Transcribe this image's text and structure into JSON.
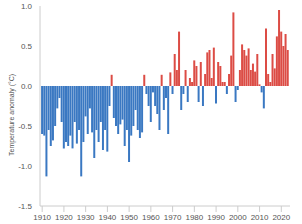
{
  "chart_data": {
    "type": "bar",
    "y_label": "Temperature anomaly (°C)",
    "x": [
      1910,
      1911,
      1912,
      1913,
      1914,
      1915,
      1916,
      1917,
      1918,
      1919,
      1920,
      1921,
      1922,
      1923,
      1924,
      1925,
      1926,
      1927,
      1928,
      1929,
      1930,
      1931,
      1932,
      1933,
      1934,
      1935,
      1936,
      1937,
      1938,
      1939,
      1940,
      1941,
      1942,
      1943,
      1944,
      1945,
      1946,
      1947,
      1948,
      1949,
      1950,
      1951,
      1952,
      1953,
      1954,
      1955,
      1956,
      1957,
      1958,
      1959,
      1960,
      1961,
      1962,
      1963,
      1964,
      1965,
      1966,
      1967,
      1968,
      1969,
      1970,
      1971,
      1972,
      1973,
      1974,
      1975,
      1976,
      1977,
      1978,
      1979,
      1980,
      1981,
      1982,
      1983,
      1984,
      1985,
      1986,
      1987,
      1988,
      1989,
      1990,
      1991,
      1992,
      1993,
      1994,
      1995,
      1996,
      1997,
      1998,
      1999,
      2000,
      2001,
      2002,
      2003,
      2004,
      2005,
      2006,
      2007,
      2008,
      2009,
      2010,
      2011,
      2012,
      2013,
      2014,
      2015,
      2016,
      2017,
      2018,
      2019,
      2020,
      2021,
      2022,
      2023
    ],
    "values": [
      -0.6,
      -0.62,
      -1.13,
      -0.55,
      -0.75,
      -0.68,
      -0.5,
      -0.28,
      -0.15,
      -0.45,
      -0.78,
      -0.7,
      -0.75,
      -0.62,
      -0.78,
      -0.45,
      -0.72,
      -0.55,
      -1.13,
      -0.7,
      -0.38,
      -0.6,
      -0.28,
      -0.58,
      -0.9,
      -0.55,
      -0.7,
      -0.45,
      -0.8,
      -0.55,
      -0.82,
      -0.25,
      0.14,
      -0.4,
      -0.5,
      -0.6,
      -0.48,
      -0.42,
      -0.75,
      -0.55,
      -0.95,
      -0.62,
      -0.5,
      -0.3,
      -0.55,
      -0.65,
      -0.58,
      0.14,
      -0.1,
      -0.25,
      -0.45,
      -0.08,
      -0.25,
      -0.35,
      -0.55,
      0.14,
      -0.3,
      -0.15,
      -0.6,
      0.17,
      -0.1,
      0.4,
      0.2,
      0.68,
      -0.3,
      -0.1,
      0.2,
      -0.2,
      0.1,
      0.05,
      0.32,
      0.25,
      -0.2,
      0.3,
      -0.25,
      0.15,
      0.42,
      0.45,
      0.1,
      0.48,
      -0.22,
      0.3,
      0.25,
      0.05,
      0.05,
      -0.1,
      0.15,
      0.38,
      0.92,
      -0.2,
      -0.05,
      0.2,
      0.52,
      0.45,
      0.38,
      0.47,
      0.2,
      0.28,
      0.18,
      0.4,
      0.02,
      -0.08,
      -0.28,
      0.72,
      0.15,
      0.05,
      0.4,
      0.22,
      0.62,
      0.95,
      0.68,
      0.5,
      0.65,
      0.45
    ],
    "colors": [
      "#3a78c2",
      "#3a78c2",
      "#3a78c2",
      "#3a78c2",
      "#3a78c2",
      "#3a78c2",
      "#3a78c2",
      "#3a78c2",
      "#3a78c2",
      "#3a78c2",
      "#3a78c2",
      "#3a78c2",
      "#3a78c2",
      "#3a78c2",
      "#3a78c2",
      "#3a78c2",
      "#3a78c2",
      "#3a78c2",
      "#3a78c2",
      "#3a78c2",
      "#3a78c2",
      "#3a78c2",
      "#3a78c2",
      "#3a78c2",
      "#3a78c2",
      "#3a78c2",
      "#3a78c2",
      "#3a78c2",
      "#3a78c2",
      "#3a78c2",
      "#3a78c2",
      "#3a78c2",
      "#dc4c45",
      "#3a78c2",
      "#3a78c2",
      "#3a78c2",
      "#3a78c2",
      "#3a78c2",
      "#3a78c2",
      "#3a78c2",
      "#3a78c2",
      "#3a78c2",
      "#3a78c2",
      "#3a78c2",
      "#3a78c2",
      "#3a78c2",
      "#3a78c2",
      "#dc4c45",
      "#3a78c2",
      "#3a78c2",
      "#3a78c2",
      "#3a78c2",
      "#3a78c2",
      "#3a78c2",
      "#3a78c2",
      "#dc4c45",
      "#3a78c2",
      "#3a78c2",
      "#3a78c2",
      "#dc4c45",
      "#3a78c2",
      "#dc4c45",
      "#dc4c45",
      "#dc4c45",
      "#3a78c2",
      "#3a78c2",
      "#dc4c45",
      "#3a78c2",
      "#dc4c45",
      "#dc4c45",
      "#dc4c45",
      "#dc4c45",
      "#3a78c2",
      "#dc4c45",
      "#3a78c2",
      "#dc4c45",
      "#dc4c45",
      "#dc4c45",
      "#dc4c45",
      "#dc4c45",
      "#3a78c2",
      "#dc4c45",
      "#dc4c45",
      "#dc4c45",
      "#dc4c45",
      "#3a78c2",
      "#dc4c45",
      "#dc4c45",
      "#dc4c45",
      "#3a78c2",
      "#3a78c2",
      "#dc4c45",
      "#dc4c45",
      "#dc4c45",
      "#dc4c45",
      "#dc4c45",
      "#dc4c45",
      "#dc4c45",
      "#dc4c45",
      "#dc4c45",
      "#dc4c45",
      "#3a78c2",
      "#3a78c2",
      "#dc4c45",
      "#dc4c45",
      "#dc4c45",
      "#dc4c45",
      "#dc4c45",
      "#dc4c45",
      "#dc4c45",
      "#dc4c45",
      "#dc4c45",
      "#dc4c45",
      "#dc4c45"
    ],
    "xlim": [
      1909,
      2024
    ],
    "xticks": [
      1910,
      1920,
      1930,
      1940,
      1950,
      1960,
      1970,
      1980,
      1990,
      2000,
      2010,
      2020
    ],
    "ylim": [
      -1.5,
      1.0
    ],
    "yticks": [
      -1.5,
      {
        "value": -1,
        "label": "-1.0"
      },
      -0.5,
      {
        "value": 0,
        "label": "0.0"
      },
      0.5,
      {
        "value": 1,
        "label": "1.0"
      }
    ],
    "grid": false
  }
}
